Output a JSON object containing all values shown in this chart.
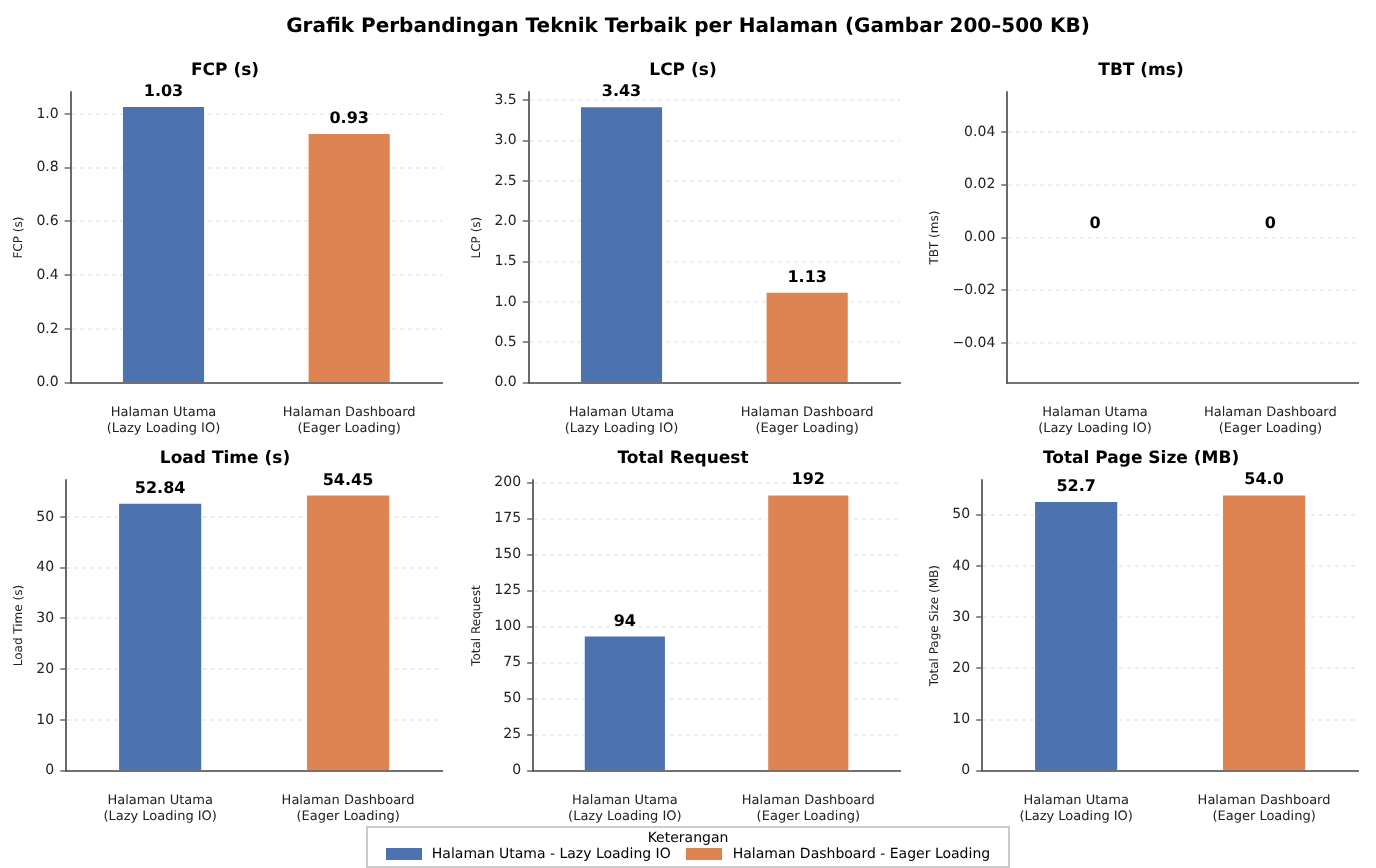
{
  "chart_data": [
    {
      "type": "bar",
      "title": "FCP (s)",
      "ylabel": "FCP (s)",
      "legend": "bottom",
      "legend_title": "Keterangan",
      "annotations": [
        "Grafik Perbandingan Teknik Terbaik per Halaman (Gambar 200–500 KB)"
      ],
      "categories": [
        "Halaman Utama\n(Lazy Loading IO)",
        "Halaman Dashboard\n(Eager Loading)"
      ],
      "series": [
        {
          "name": "Halaman Utama - Lazy Loading IO",
          "color": "#4c72b0",
          "values": [
            1.03,
            null
          ],
          "value_labels": [
            "1.03",
            null
          ]
        },
        {
          "name": "Halaman Dashboard - Eager Loading",
          "color": "#dd8452",
          "values": [
            null,
            0.93
          ],
          "value_labels": [
            null,
            "0.93"
          ]
        }
      ],
      "ylim": [
        0,
        1.08
      ],
      "yticks": [
        {
          "value": 0,
          "label": "0.0"
        },
        {
          "value": 0.2,
          "label": "0.2"
        },
        {
          "value": 0.4,
          "label": "0.4"
        },
        {
          "value": 0.6,
          "label": "0.6"
        },
        {
          "value": 0.8,
          "label": "0.8"
        },
        {
          "value": 1,
          "label": "1.0"
        }
      ],
      "grid": "y"
    },
    {
      "type": "bar",
      "title": "LCP (s)",
      "ylabel": "LCP (s)",
      "categories": [
        "Halaman Utama\n(Lazy Loading IO)",
        "Halaman Dashboard\n(Eager Loading)"
      ],
      "series": [
        {
          "color": "#4c72b0",
          "values": [
            3.43,
            null
          ],
          "value_labels": [
            "3.43",
            null
          ]
        },
        {
          "color": "#dd8452",
          "values": [
            null,
            1.13
          ],
          "value_labels": [
            null,
            "1.13"
          ]
        }
      ],
      "ylim": [
        0,
        3.6
      ],
      "yticks": [
        {
          "value": 0,
          "label": "0.0"
        },
        {
          "value": 0.5,
          "label": "0.5"
        },
        {
          "value": 1,
          "label": "1.0"
        },
        {
          "value": 1.5,
          "label": "1.5"
        },
        {
          "value": 2,
          "label": "2.0"
        },
        {
          "value": 2.5,
          "label": "2.5"
        },
        {
          "value": 3,
          "label": "3.0"
        },
        {
          "value": 3.5,
          "label": "3.5"
        }
      ],
      "grid": "y"
    },
    {
      "type": "bar",
      "title": "TBT (ms)",
      "ylabel": "TBT (ms)",
      "categories": [
        "Halaman Utama\n(Lazy Loading IO)",
        "Halaman Dashboard\n(Eager Loading)"
      ],
      "series": [
        {
          "color": "#4c72b0",
          "values": [
            0,
            null
          ],
          "value_labels": [
            "0",
            null
          ]
        },
        {
          "color": "#dd8452",
          "values": [
            null,
            0
          ],
          "value_labels": [
            null,
            "0"
          ]
        }
      ],
      "ylim": [
        -0.055,
        0.055
      ],
      "yticks": [
        {
          "value": -0.04,
          "label": "−0.04"
        },
        {
          "value": -0.02,
          "label": "−0.02"
        },
        {
          "value": 0,
          "label": "0.00"
        },
        {
          "value": 0.02,
          "label": "0.02"
        },
        {
          "value": 0.04,
          "label": "0.04"
        }
      ],
      "grid": "y"
    },
    {
      "type": "bar",
      "title": "Load Time (s)",
      "ylabel": "Load Time (s)",
      "categories": [
        "Halaman Utama\n(Lazy Loading IO)",
        "Halaman Dashboard\n(Eager Loading)"
      ],
      "series": [
        {
          "color": "#4c72b0",
          "values": [
            52.84,
            null
          ],
          "value_labels": [
            "52.84",
            null
          ]
        },
        {
          "color": "#dd8452",
          "values": [
            null,
            54.45
          ],
          "value_labels": [
            null,
            "54.45"
          ]
        }
      ],
      "ylim": [
        0,
        57.2
      ],
      "yticks": [
        0,
        10,
        20,
        30,
        40,
        50
      ],
      "grid": "y"
    },
    {
      "type": "bar",
      "title": "Total Request",
      "ylabel": "Total Request",
      "categories": [
        "Halaman Utama\n(Lazy Loading IO)",
        "Halaman Dashboard\n(Eager Loading)"
      ],
      "series": [
        {
          "color": "#4c72b0",
          "values": [
            94,
            null
          ],
          "value_labels": [
            "94",
            null
          ]
        },
        {
          "color": "#dd8452",
          "values": [
            null,
            192
          ],
          "value_labels": [
            null,
            "192"
          ]
        }
      ],
      "ylim": [
        0,
        201.6
      ],
      "yticks": [
        0,
        25,
        50,
        75,
        100,
        125,
        150,
        175,
        200
      ],
      "grid": "y"
    },
    {
      "type": "bar",
      "title": "Total Page Size (MB)",
      "ylabel": "Total Page Size (MB)",
      "categories": [
        "Halaman Utama\n(Lazy Loading IO)",
        "Halaman Dashboard\n(Eager Loading)"
      ],
      "series": [
        {
          "color": "#4c72b0",
          "values": [
            52.7,
            null
          ],
          "value_labels": [
            "52.7",
            null
          ]
        },
        {
          "color": "#dd8452",
          "values": [
            null,
            54.0
          ],
          "value_labels": [
            null,
            "54.0"
          ]
        }
      ],
      "ylim": [
        0,
        56.7
      ],
      "yticks": [
        0,
        10,
        20,
        30,
        40,
        50
      ],
      "grid": "y"
    }
  ]
}
